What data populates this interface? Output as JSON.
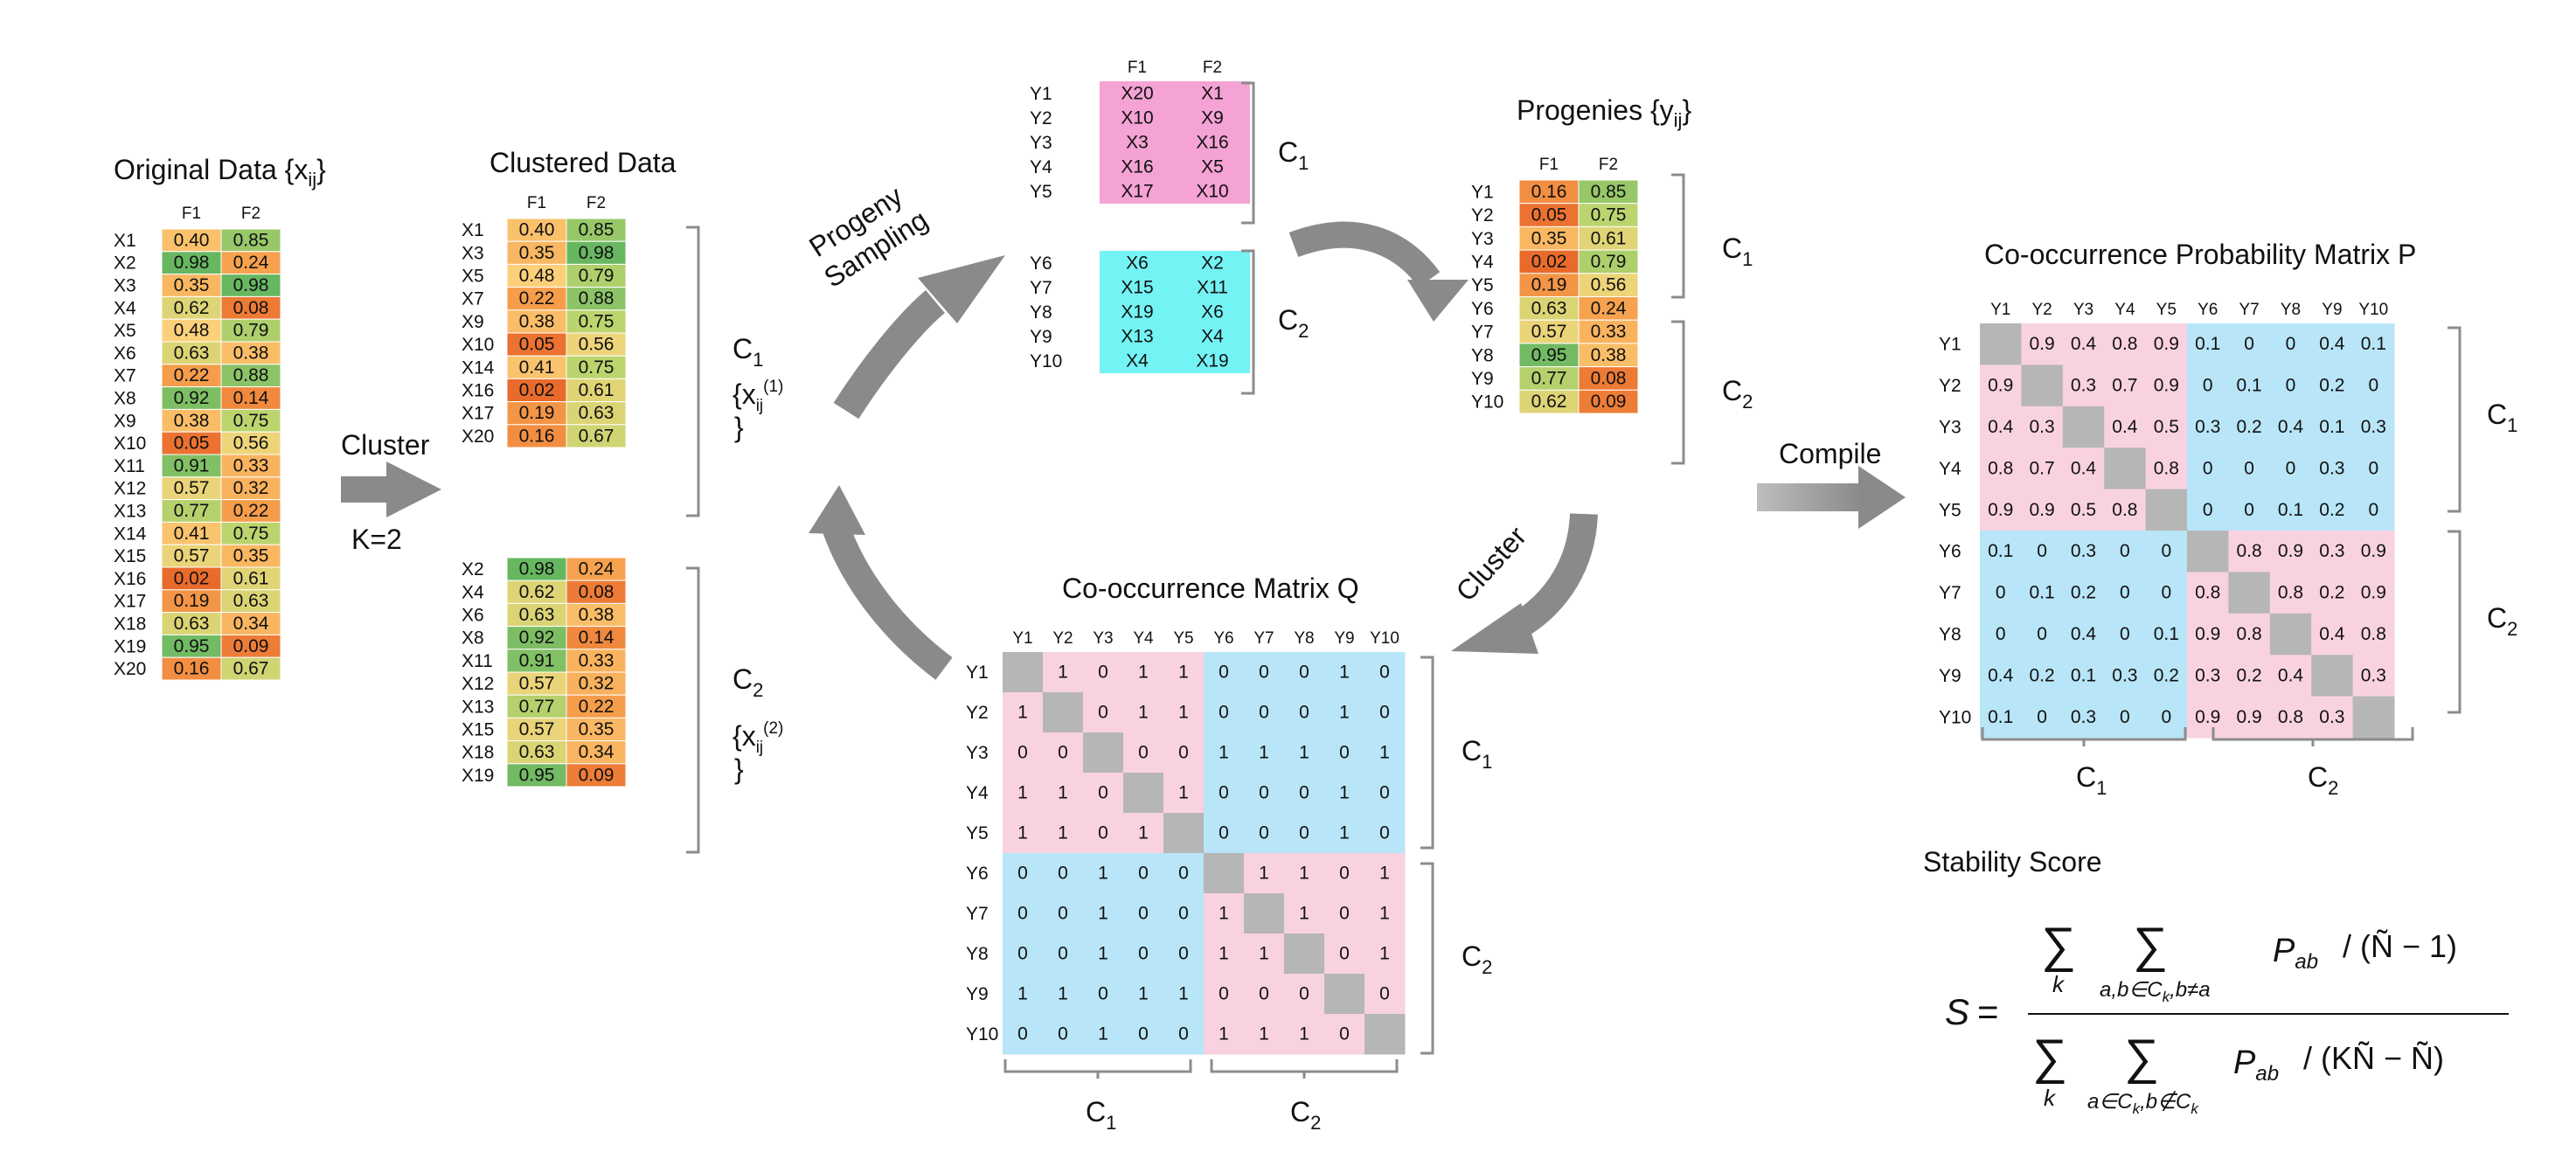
{
  "titles": {
    "original": "Original Data {x",
    "original_sub": "ij",
    "original_close": "}",
    "clustered": "Clustered Data",
    "progenies": "Progenies {y",
    "progenies_sub": "ij",
    "progenies_close": "}",
    "cooc_q": "Co-occurrence Matrix Q",
    "cooc_p": "Co-occurrence Probability Matrix P",
    "stability": "Stability Score"
  },
  "arrows": {
    "cluster": "Cluster",
    "k": "K=2",
    "progeny": "Progeny",
    "sampling": "Sampling",
    "cluster2": "Cluster",
    "compile": "Compile"
  },
  "col_headers": [
    "F1",
    "F2"
  ],
  "original_data": {
    "rows": [
      "X1",
      "X2",
      "X3",
      "X4",
      "X5",
      "X6",
      "X7",
      "X8",
      "X9",
      "X10",
      "X11",
      "X12",
      "X13",
      "X14",
      "X15",
      "X16",
      "X17",
      "X18",
      "X19",
      "X20"
    ],
    "f1": [
      "0.40",
      "0.98",
      "0.35",
      "0.62",
      "0.48",
      "0.63",
      "0.22",
      "0.92",
      "0.38",
      "0.05",
      "0.91",
      "0.57",
      "0.77",
      "0.41",
      "0.57",
      "0.02",
      "0.19",
      "0.63",
      "0.95",
      "0.16"
    ],
    "f2": [
      "0.85",
      "0.24",
      "0.98",
      "0.08",
      "0.79",
      "0.38",
      "0.88",
      "0.14",
      "0.75",
      "0.56",
      "0.33",
      "0.32",
      "0.22",
      "0.75",
      "0.35",
      "0.61",
      "0.63",
      "0.34",
      "0.09",
      "0.67"
    ]
  },
  "clustered_c1": {
    "rows": [
      "X1",
      "X3",
      "X5",
      "X7",
      "X9",
      "X10",
      "X14",
      "X16",
      "X17",
      "X20"
    ],
    "f1": [
      "0.40",
      "0.35",
      "0.48",
      "0.22",
      "0.38",
      "0.05",
      "0.41",
      "0.02",
      "0.19",
      "0.16"
    ],
    "f2": [
      "0.85",
      "0.98",
      "0.79",
      "0.88",
      "0.75",
      "0.56",
      "0.75",
      "0.61",
      "0.63",
      "0.67"
    ]
  },
  "clustered_c2": {
    "rows": [
      "X2",
      "X4",
      "X6",
      "X8",
      "X11",
      "X12",
      "X13",
      "X15",
      "X18",
      "X19"
    ],
    "f1": [
      "0.98",
      "0.62",
      "0.63",
      "0.92",
      "0.91",
      "0.57",
      "0.77",
      "0.57",
      "0.63",
      "0.95"
    ],
    "f2": [
      "0.24",
      "0.08",
      "0.38",
      "0.14",
      "0.33",
      "0.32",
      "0.22",
      "0.35",
      "0.34",
      "0.09"
    ]
  },
  "cluster_labels": {
    "c": "C",
    "one": "1",
    "two": "2",
    "set1_open": "{x",
    "set1_sub": "ij",
    "set1_sup": "(1)",
    "set_close": "}",
    "set2_open": "{x",
    "set2_sub": "ij",
    "set2_sup": "(2)"
  },
  "sample_c1": {
    "rows": [
      "Y1",
      "Y2",
      "Y3",
      "Y4",
      "Y5"
    ],
    "f1": [
      "X20",
      "X10",
      "X3",
      "X16",
      "X17"
    ],
    "f2": [
      "X1",
      "X9",
      "X16",
      "X5",
      "X10"
    ]
  },
  "sample_c2": {
    "rows": [
      "Y6",
      "Y7",
      "Y8",
      "Y9",
      "Y10"
    ],
    "f1": [
      "X6",
      "X15",
      "X19",
      "X13",
      "X4"
    ],
    "f2": [
      "X2",
      "X11",
      "X6",
      "X4",
      "X19"
    ]
  },
  "progenies": {
    "rows": [
      "Y1",
      "Y2",
      "Y3",
      "Y4",
      "Y5",
      "Y6",
      "Y7",
      "Y8",
      "Y9",
      "Y10"
    ],
    "f1": [
      "0.16",
      "0.05",
      "0.35",
      "0.02",
      "0.19",
      "0.63",
      "0.57",
      "0.95",
      "0.77",
      "0.62"
    ],
    "f2": [
      "0.85",
      "0.75",
      "0.61",
      "0.79",
      "0.56",
      "0.24",
      "0.33",
      "0.38",
      "0.08",
      "0.09"
    ]
  },
  "matrix_labels": [
    "Y1",
    "Y2",
    "Y3",
    "Y4",
    "Y5",
    "Y6",
    "Y7",
    "Y8",
    "Y9",
    "Y10"
  ],
  "matrix_q": [
    [
      "",
      "1",
      "0",
      "1",
      "1",
      "0",
      "0",
      "0",
      "1",
      "0"
    ],
    [
      "1",
      "",
      "0",
      "1",
      "1",
      "0",
      "0",
      "0",
      "1",
      "0"
    ],
    [
      "0",
      "0",
      "",
      "0",
      "0",
      "1",
      "1",
      "1",
      "0",
      "1"
    ],
    [
      "1",
      "1",
      "0",
      "",
      "1",
      "0",
      "0",
      "0",
      "1",
      "0"
    ],
    [
      "1",
      "1",
      "0",
      "1",
      "",
      "0",
      "0",
      "0",
      "1",
      "0"
    ],
    [
      "0",
      "0",
      "1",
      "0",
      "0",
      "",
      "1",
      "1",
      "0",
      "1"
    ],
    [
      "0",
      "0",
      "1",
      "0",
      "0",
      "1",
      "",
      "1",
      "0",
      "1"
    ],
    [
      "0",
      "0",
      "1",
      "0",
      "0",
      "1",
      "1",
      "",
      "0",
      "1"
    ],
    [
      "1",
      "1",
      "0",
      "1",
      "1",
      "0",
      "0",
      "0",
      "",
      "0"
    ],
    [
      "0",
      "0",
      "1",
      "0",
      "0",
      "1",
      "1",
      "1",
      "0",
      ""
    ]
  ],
  "matrix_p": [
    [
      "",
      "0.9",
      "0.4",
      "0.8",
      "0.9",
      "0.1",
      "0",
      "0",
      "0.4",
      "0.1"
    ],
    [
      "0.9",
      "",
      "0.3",
      "0.7",
      "0.9",
      "0",
      "0.1",
      "0",
      "0.2",
      "0"
    ],
    [
      "0.4",
      "0.3",
      "",
      "0.4",
      "0.5",
      "0.3",
      "0.2",
      "0.4",
      "0.1",
      "0.3"
    ],
    [
      "0.8",
      "0.7",
      "0.4",
      "",
      "0.8",
      "0",
      "0",
      "0",
      "0.3",
      "0"
    ],
    [
      "0.9",
      "0.9",
      "0.5",
      "0.8",
      "",
      "0",
      "0",
      "0.1",
      "0.2",
      "0"
    ],
    [
      "0.1",
      "0",
      "0.3",
      "0",
      "0",
      "",
      "0.8",
      "0.9",
      "0.3",
      "0.9"
    ],
    [
      "0",
      "0.1",
      "0.2",
      "0",
      "0",
      "0.8",
      "",
      "0.8",
      "0.2",
      "0.9"
    ],
    [
      "0",
      "0",
      "0.4",
      "0",
      "0.1",
      "0.9",
      "0.8",
      "",
      "0.4",
      "0.8"
    ],
    [
      "0.4",
      "0.2",
      "0.1",
      "0.3",
      "0.2",
      "0.3",
      "0.2",
      "0.4",
      "",
      "0.3"
    ],
    [
      "0.1",
      "0",
      "0.3",
      "0",
      "0",
      "0.9",
      "0.9",
      "0.8",
      "0.3",
      ""
    ]
  ],
  "formula": {
    "s": "S",
    "eq": "=",
    "sum": "∑",
    "k": "k",
    "num_inner": "a,b∈C",
    "num_inner_sub": "k",
    "num_inner_tail": ",b≠a",
    "p": "P",
    "p_sub": "ab",
    "num_div": "/ (Ñ − 1)",
    "den_inner": "a∈C",
    "den_inner_sub": "k",
    "den_inner_mid": ",b∉C",
    "den_inner_sub2": "k",
    "den_div": "/ (KÑ − Ñ)"
  },
  "colors": {
    "pink": "#f9d2e1",
    "cyan": "#b8e5f7",
    "magenta": "#f5a2d4",
    "aqua": "#74f3f4",
    "diag": "#b6b6b6",
    "arrow": "#8a8a8a",
    "bracket": "#8c8c8c"
  }
}
